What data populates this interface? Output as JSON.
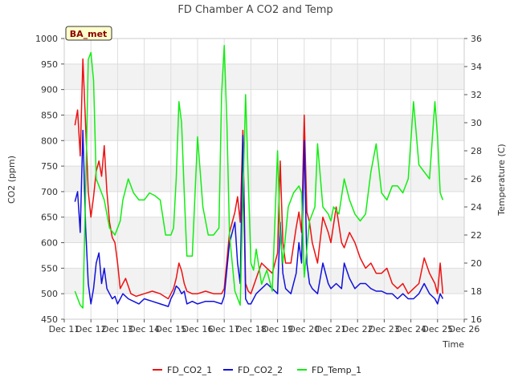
{
  "chart_data": {
    "type": "line",
    "title": "FD Chamber A CO2 and Temp",
    "badge": "BA_met",
    "xlabel": "Time",
    "ylabel": "CO2 (ppm)",
    "y2label": "Temperature (C)",
    "xlim": [
      11,
      26
    ],
    "ylim": [
      450,
      1000
    ],
    "y2lim": [
      16,
      36
    ],
    "x_ticks": [
      11,
      12,
      13,
      14,
      15,
      16,
      17,
      18,
      19,
      20,
      21,
      22,
      23,
      24,
      25,
      26
    ],
    "x_tick_labels": [
      "Dec 11",
      "Dec 12",
      "Dec 13",
      "Dec 14",
      "Dec 15",
      "Dec 16",
      "Dec 17",
      "Dec 18",
      "Dec 19",
      "Dec 20",
      "Dec 21",
      "Dec 22",
      "Dec 23",
      "Dec 24",
      "Dec 25",
      "Dec 26"
    ],
    "y_ticks": [
      450,
      500,
      550,
      600,
      650,
      700,
      750,
      800,
      850,
      900,
      950,
      1000
    ],
    "y2_ticks": [
      16,
      18,
      20,
      22,
      24,
      26,
      28,
      30,
      32,
      34,
      36
    ],
    "grid": true,
    "legend_position": "bottom",
    "series": [
      {
        "name": "FD_CO2_1",
        "axis": "left",
        "color": "#ee1111",
        "x": [
          11.4,
          11.5,
          11.6,
          11.7,
          11.8,
          11.9,
          12.0,
          12.1,
          12.2,
          12.3,
          12.4,
          12.5,
          12.6,
          12.7,
          12.8,
          12.9,
          13.0,
          13.1,
          13.3,
          13.5,
          13.7,
          14.0,
          14.3,
          14.6,
          14.9,
          15.0,
          15.1,
          15.2,
          15.3,
          15.4,
          15.5,
          15.6,
          15.8,
          16.0,
          16.3,
          16.6,
          16.9,
          17.0,
          17.2,
          17.4,
          17.5,
          17.6,
          17.7,
          17.8,
          17.9,
          18.0,
          18.2,
          18.4,
          18.6,
          18.8,
          19.0,
          19.1,
          19.2,
          19.3,
          19.5,
          19.7,
          19.8,
          19.9,
          20.0,
          20.1,
          20.2,
          20.3,
          20.5,
          20.7,
          20.9,
          21.0,
          21.2,
          21.4,
          21.5,
          21.7,
          21.9,
          22.1,
          22.3,
          22.5,
          22.7,
          22.9,
          23.1,
          23.3,
          23.5,
          23.7,
          23.9,
          24.1,
          24.3,
          24.5,
          24.7,
          24.9,
          25.0,
          25.1,
          25.2
        ],
        "y": [
          830,
          860,
          770,
          960,
          830,
          700,
          650,
          690,
          740,
          760,
          730,
          790,
          700,
          640,
          610,
          600,
          560,
          510,
          530,
          500,
          495,
          500,
          505,
          500,
          490,
          500,
          510,
          530,
          560,
          545,
          520,
          505,
          500,
          500,
          505,
          500,
          500,
          510,
          620,
          660,
          690,
          640,
          820,
          520,
          505,
          500,
          530,
          560,
          550,
          540,
          580,
          760,
          600,
          560,
          560,
          630,
          660,
          620,
          850,
          660,
          640,
          600,
          560,
          650,
          620,
          600,
          670,
          600,
          590,
          620,
          600,
          570,
          550,
          560,
          540,
          540,
          550,
          520,
          510,
          520,
          500,
          510,
          520,
          570,
          540,
          520,
          500,
          560,
          500
        ]
      },
      {
        "name": "FD_CO2_2",
        "axis": "left",
        "color": "#1111dd",
        "x": [
          11.4,
          11.5,
          11.6,
          11.7,
          11.8,
          11.9,
          12.0,
          12.1,
          12.2,
          12.3,
          12.4,
          12.5,
          12.6,
          12.7,
          12.8,
          12.9,
          13.0,
          13.2,
          13.4,
          13.6,
          13.8,
          14.0,
          14.3,
          14.6,
          14.9,
          15.0,
          15.1,
          15.2,
          15.3,
          15.4,
          15.5,
          15.6,
          15.8,
          16.0,
          16.3,
          16.6,
          16.9,
          17.0,
          17.2,
          17.4,
          17.5,
          17.6,
          17.7,
          17.8,
          17.9,
          18.0,
          18.2,
          18.4,
          18.6,
          18.8,
          19.0,
          19.1,
          19.2,
          19.3,
          19.5,
          19.7,
          19.8,
          19.9,
          20.0,
          20.1,
          20.2,
          20.3,
          20.5,
          20.7,
          20.9,
          21.0,
          21.2,
          21.4,
          21.5,
          21.7,
          21.9,
          22.1,
          22.3,
          22.5,
          22.7,
          22.9,
          23.1,
          23.3,
          23.5,
          23.7,
          23.9,
          24.1,
          24.3,
          24.5,
          24.7,
          24.9,
          25.0,
          25.1,
          25.2
        ],
        "y": [
          680,
          700,
          620,
          820,
          630,
          520,
          480,
          510,
          560,
          580,
          520,
          550,
          510,
          500,
          490,
          495,
          480,
          500,
          490,
          485,
          480,
          490,
          485,
          480,
          475,
          490,
          500,
          515,
          510,
          500,
          505,
          480,
          485,
          480,
          485,
          485,
          480,
          495,
          600,
          640,
          560,
          520,
          810,
          490,
          480,
          480,
          500,
          510,
          520,
          510,
          500,
          640,
          540,
          510,
          500,
          540,
          600,
          560,
          800,
          560,
          520,
          510,
          500,
          560,
          520,
          510,
          520,
          510,
          560,
          530,
          510,
          520,
          520,
          510,
          505,
          505,
          500,
          500,
          490,
          500,
          490,
          490,
          500,
          520,
          500,
          490,
          480,
          500,
          490
        ]
      },
      {
        "name": "FD_Temp_1",
        "axis": "right",
        "color": "#11ee11",
        "x": [
          11.4,
          11.5,
          11.6,
          11.7,
          11.8,
          11.9,
          12.0,
          12.1,
          12.2,
          12.3,
          12.4,
          12.5,
          12.7,
          12.9,
          13.0,
          13.1,
          13.2,
          13.4,
          13.6,
          13.8,
          14.0,
          14.2,
          14.4,
          14.6,
          14.8,
          15.0,
          15.1,
          15.2,
          15.3,
          15.4,
          15.5,
          15.6,
          15.8,
          16.0,
          16.2,
          16.4,
          16.6,
          16.8,
          16.9,
          17.0,
          17.1,
          17.2,
          17.4,
          17.6,
          17.8,
          18.0,
          18.1,
          18.2,
          18.4,
          18.6,
          18.8,
          19.0,
          19.1,
          19.2,
          19.4,
          19.6,
          19.8,
          19.9,
          20.0,
          20.2,
          20.4,
          20.5,
          20.7,
          20.9,
          21.0,
          21.1,
          21.3,
          21.5,
          21.7,
          21.9,
          22.1,
          22.3,
          22.5,
          22.7,
          22.9,
          23.1,
          23.3,
          23.5,
          23.7,
          23.9,
          24.1,
          24.3,
          24.5,
          24.7,
          24.9,
          25.0,
          25.1,
          25.2
        ],
        "y": [
          18.0,
          17.5,
          17.0,
          16.8,
          25.0,
          34.5,
          35.0,
          33.0,
          26.0,
          25.5,
          25.0,
          24.5,
          22.5,
          22.0,
          22.5,
          23.0,
          24.5,
          26.0,
          25.0,
          24.5,
          24.5,
          25.0,
          24.8,
          24.5,
          22.0,
          22.0,
          22.5,
          26.0,
          31.5,
          30.0,
          25.0,
          20.5,
          20.5,
          29.0,
          24.0,
          22.0,
          22.0,
          22.5,
          32.0,
          35.5,
          30.0,
          22.0,
          18.0,
          17.0,
          32.0,
          20.0,
          19.5,
          21.0,
          18.5,
          19.5,
          18.0,
          28.0,
          22.0,
          20.0,
          24.0,
          25.0,
          25.5,
          25.0,
          19.0,
          23.0,
          24.0,
          28.5,
          24.0,
          23.5,
          23.0,
          24.0,
          23.5,
          26.0,
          24.5,
          23.5,
          23.0,
          23.5,
          26.5,
          28.5,
          25.0,
          24.5,
          25.5,
          25.5,
          25.0,
          26.0,
          31.5,
          27.0,
          26.5,
          26.0,
          31.5,
          29.0,
          25.0,
          24.5
        ]
      }
    ]
  }
}
